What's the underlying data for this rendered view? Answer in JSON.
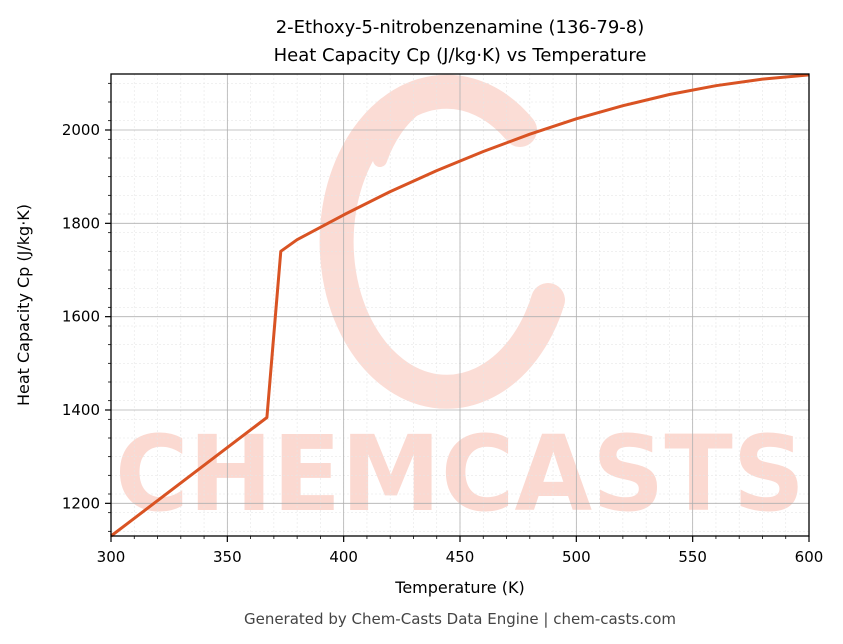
{
  "chart_data": {
    "type": "line",
    "title_line1": "2-Ethoxy-5-nitrobenzenamine (136-79-8)",
    "title_line2": "Heat Capacity Cp (J/kg·K) vs Temperature",
    "xlabel": "Temperature (K)",
    "ylabel": "Heat Capacity Cp (J/kg·K)",
    "xlim": [
      300,
      600
    ],
    "ylim": [
      1130,
      2120
    ],
    "xticks": [
      300,
      350,
      400,
      450,
      500,
      550,
      600
    ],
    "yticks": [
      1200,
      1400,
      1600,
      1800,
      2000
    ],
    "grid": true,
    "line_color": "#d95323",
    "series": [
      {
        "x": [
          300,
          367,
          373,
          380,
          400,
          420,
          440,
          460,
          480,
          500,
          520,
          540,
          560,
          580,
          600
        ],
        "y": [
          1130,
          1384,
          1740,
          1765,
          1818,
          1868,
          1913,
          1954,
          1991,
          2024,
          2052,
          2076,
          2095,
          2109,
          2118
        ]
      }
    ]
  },
  "watermark": {
    "text": "CHEMCASTS",
    "color": "#fbd9d1"
  },
  "footer": "Generated by Chem-Casts Data Engine | chem-casts.com"
}
